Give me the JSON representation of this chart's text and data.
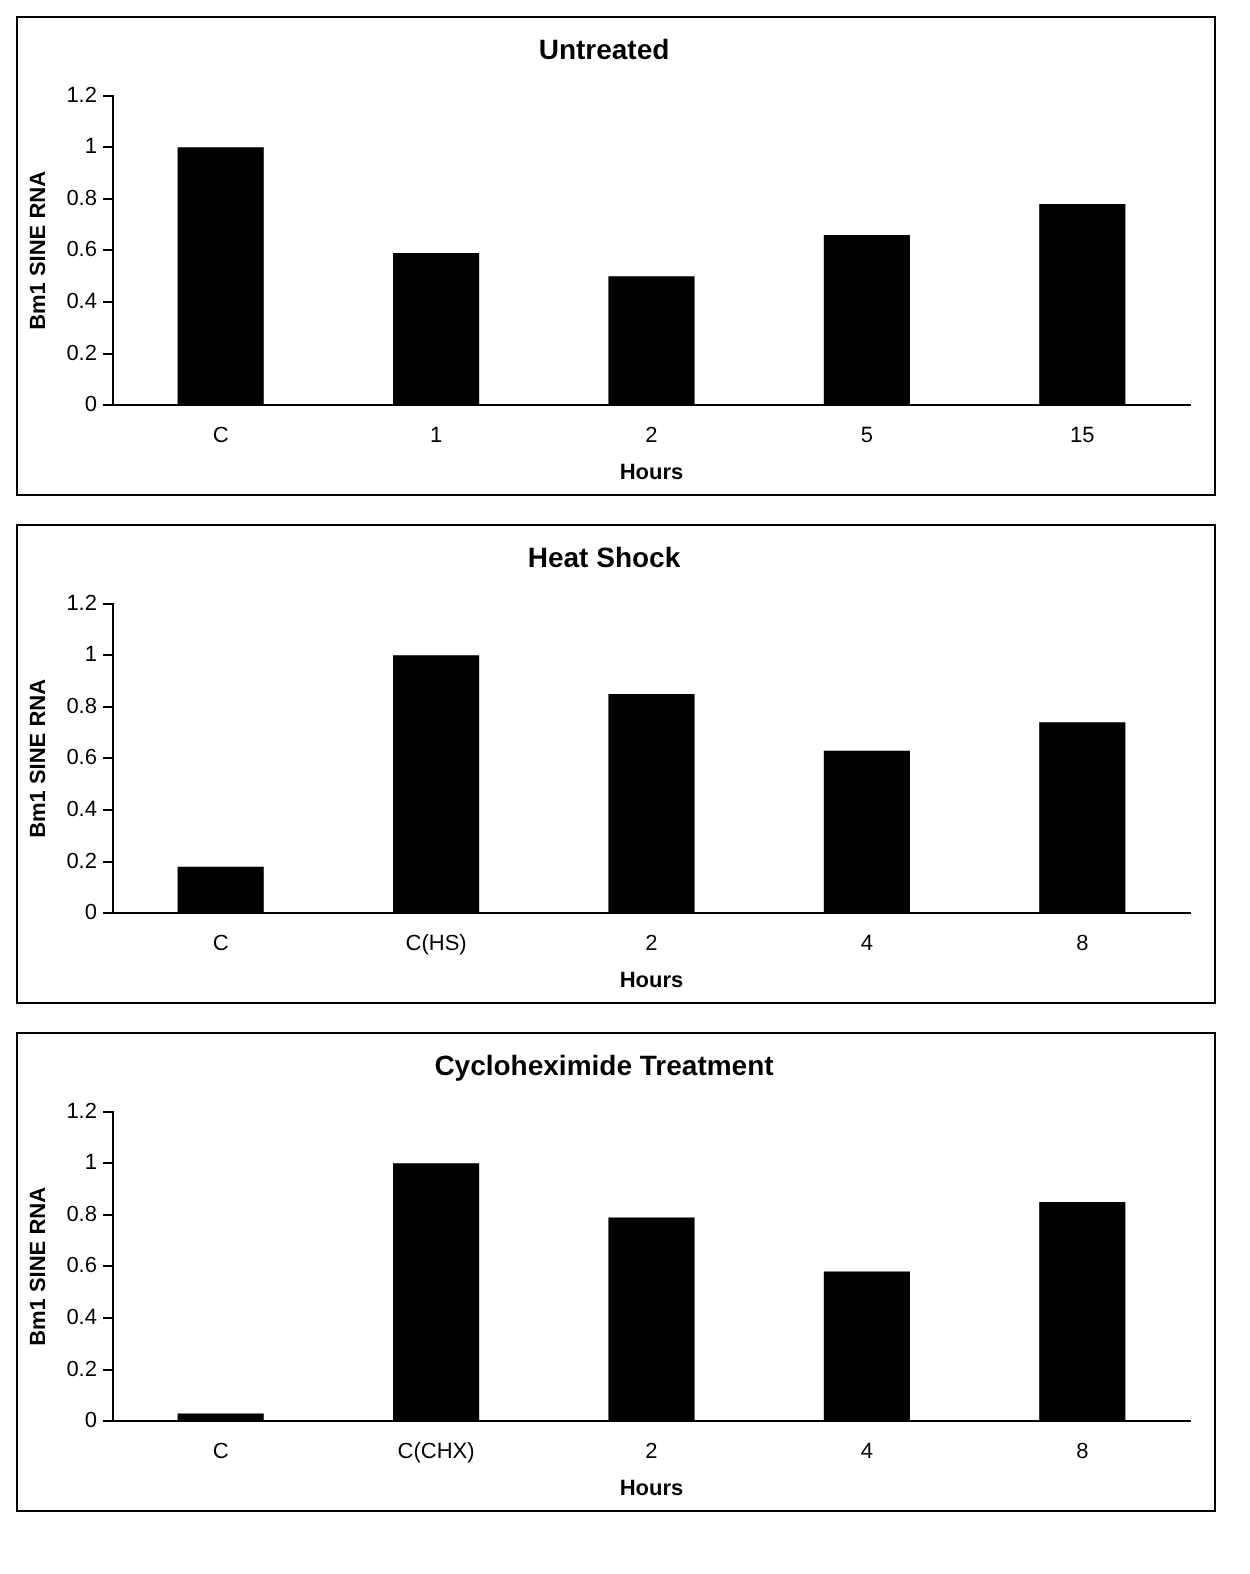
{
  "chart_data": [
    {
      "type": "bar",
      "title": "Untreated",
      "xlabel": "Hours",
      "ylabel": "Bm1 SINE RNA",
      "categories": [
        "C",
        "1",
        "2",
        "5",
        "15"
      ],
      "values": [
        1,
        0.59,
        0.5,
        0.66,
        0.78
      ],
      "color": "#000000",
      "ylim": [
        0,
        1.2
      ],
      "yticks": [
        0,
        0.2,
        0.4,
        0.6,
        0.8,
        1,
        1.2
      ],
      "grid": false,
      "legend": false
    },
    {
      "type": "bar",
      "title": "Heat Shock",
      "xlabel": "Hours",
      "ylabel": "Bm1 SINE RNA",
      "categories": [
        "C",
        "C(HS)",
        "2",
        "4",
        "8"
      ],
      "values": [
        0.18,
        1,
        0.85,
        0.63,
        0.74
      ],
      "color": "#000000",
      "ylim": [
        0,
        1.2
      ],
      "yticks": [
        0,
        0.2,
        0.4,
        0.6,
        0.8,
        1,
        1.2
      ],
      "grid": false,
      "legend": false
    },
    {
      "type": "bar",
      "title": "Cycloheximide Treatment",
      "xlabel": "Hours",
      "ylabel": "Bm1 SINE RNA",
      "categories": [
        "C",
        "C(CHX)",
        "2",
        "4",
        "8"
      ],
      "values": [
        0.03,
        1,
        0.79,
        0.58,
        0.85
      ],
      "color": "#000000",
      "ylim": [
        0,
        1.2
      ],
      "yticks": [
        0,
        0.2,
        0.4,
        0.6,
        0.8,
        1,
        1.2
      ],
      "grid": false,
      "legend": false
    }
  ]
}
